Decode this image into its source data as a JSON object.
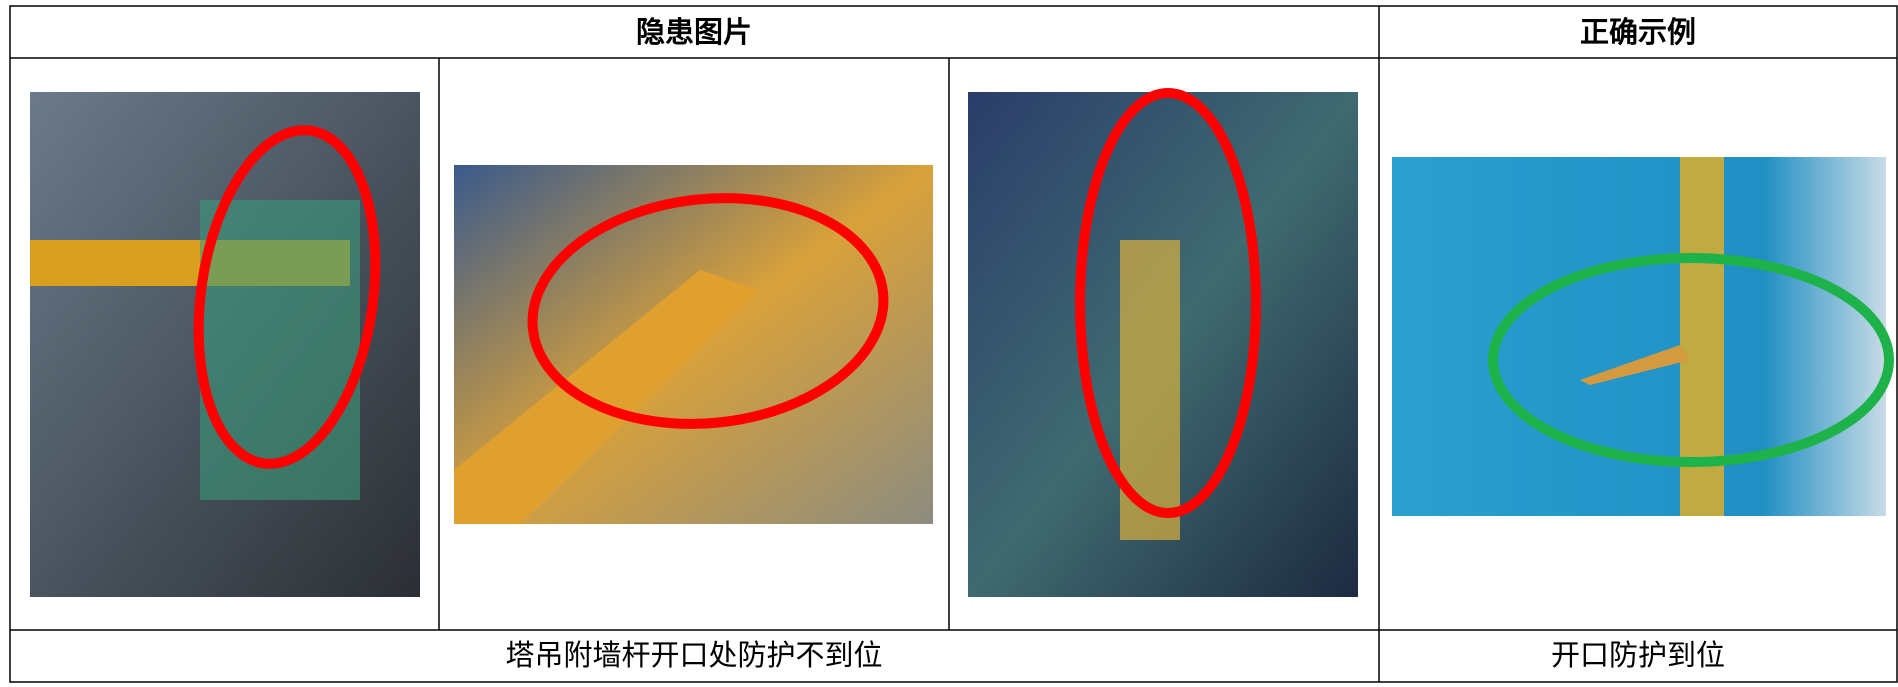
{
  "header": {
    "columns": [
      "隐患图片",
      "正确示例"
    ]
  },
  "footer": {
    "cells": [
      "塔吊附墙杆开口处防护不到位",
      "开口防护到位"
    ]
  }
}
